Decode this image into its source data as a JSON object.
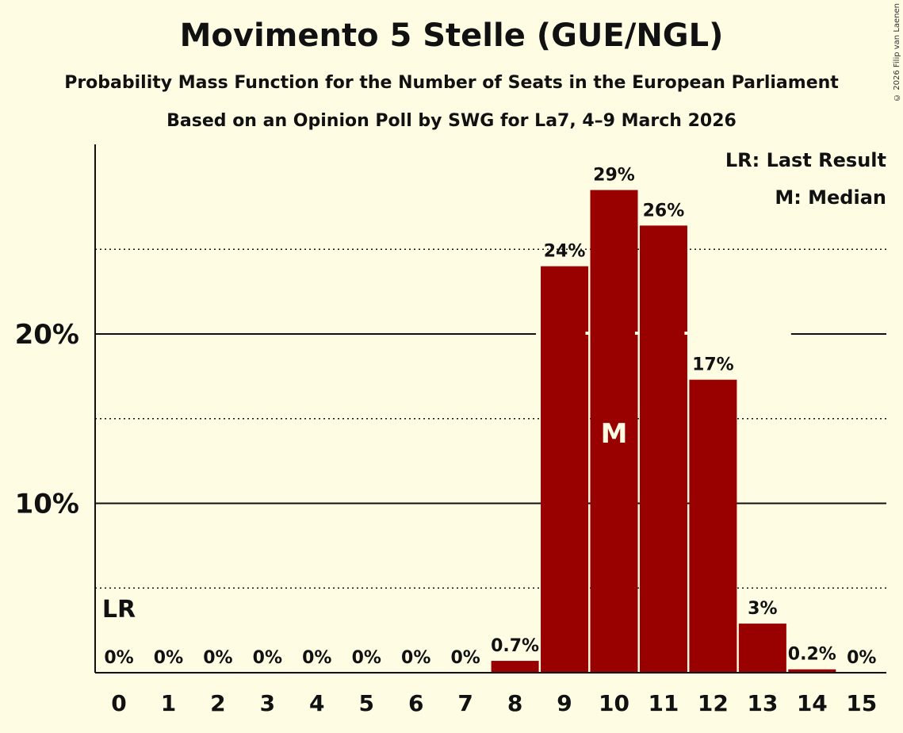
{
  "title": "Movimento 5 Stelle (GUE/NGL)",
  "subtitle": "Probability Mass Function for the Number of Seats in the European Parliament",
  "subtitle2": "Based on an Opinion Poll by SWG for La7, 4–9 March 2026",
  "copyright": "© 2026 Filip van Laenen",
  "legend": {
    "last_result": "LR: Last Result",
    "median": "M: Median"
  },
  "colors": {
    "bar": "#990000",
    "background": "#fefde4",
    "axis": "#111111"
  },
  "chart_data": {
    "type": "bar",
    "categories": [
      "0",
      "1",
      "2",
      "3",
      "4",
      "5",
      "6",
      "7",
      "8",
      "9",
      "10",
      "11",
      "12",
      "13",
      "14",
      "15"
    ],
    "values": [
      0,
      0,
      0,
      0,
      0,
      0,
      0,
      0,
      0.7,
      24,
      28.5,
      26.4,
      17.3,
      2.9,
      0.2,
      0
    ],
    "labels": [
      "0%",
      "0%",
      "0%",
      "0%",
      "0%",
      "0%",
      "0%",
      "0%",
      "0.7%",
      "24%",
      "29%",
      "26%",
      "17%",
      "3%",
      "0.2%",
      "0%"
    ],
    "ylim": [
      0,
      31
    ],
    "yticks_major": [
      10,
      20
    ],
    "ytick_labels": [
      "10%",
      "20%"
    ],
    "yticks_minor": [
      5,
      15,
      25
    ],
    "last_result_seat": "0",
    "last_result_marker": "LR",
    "median_seat": "10",
    "median_marker": "M"
  }
}
